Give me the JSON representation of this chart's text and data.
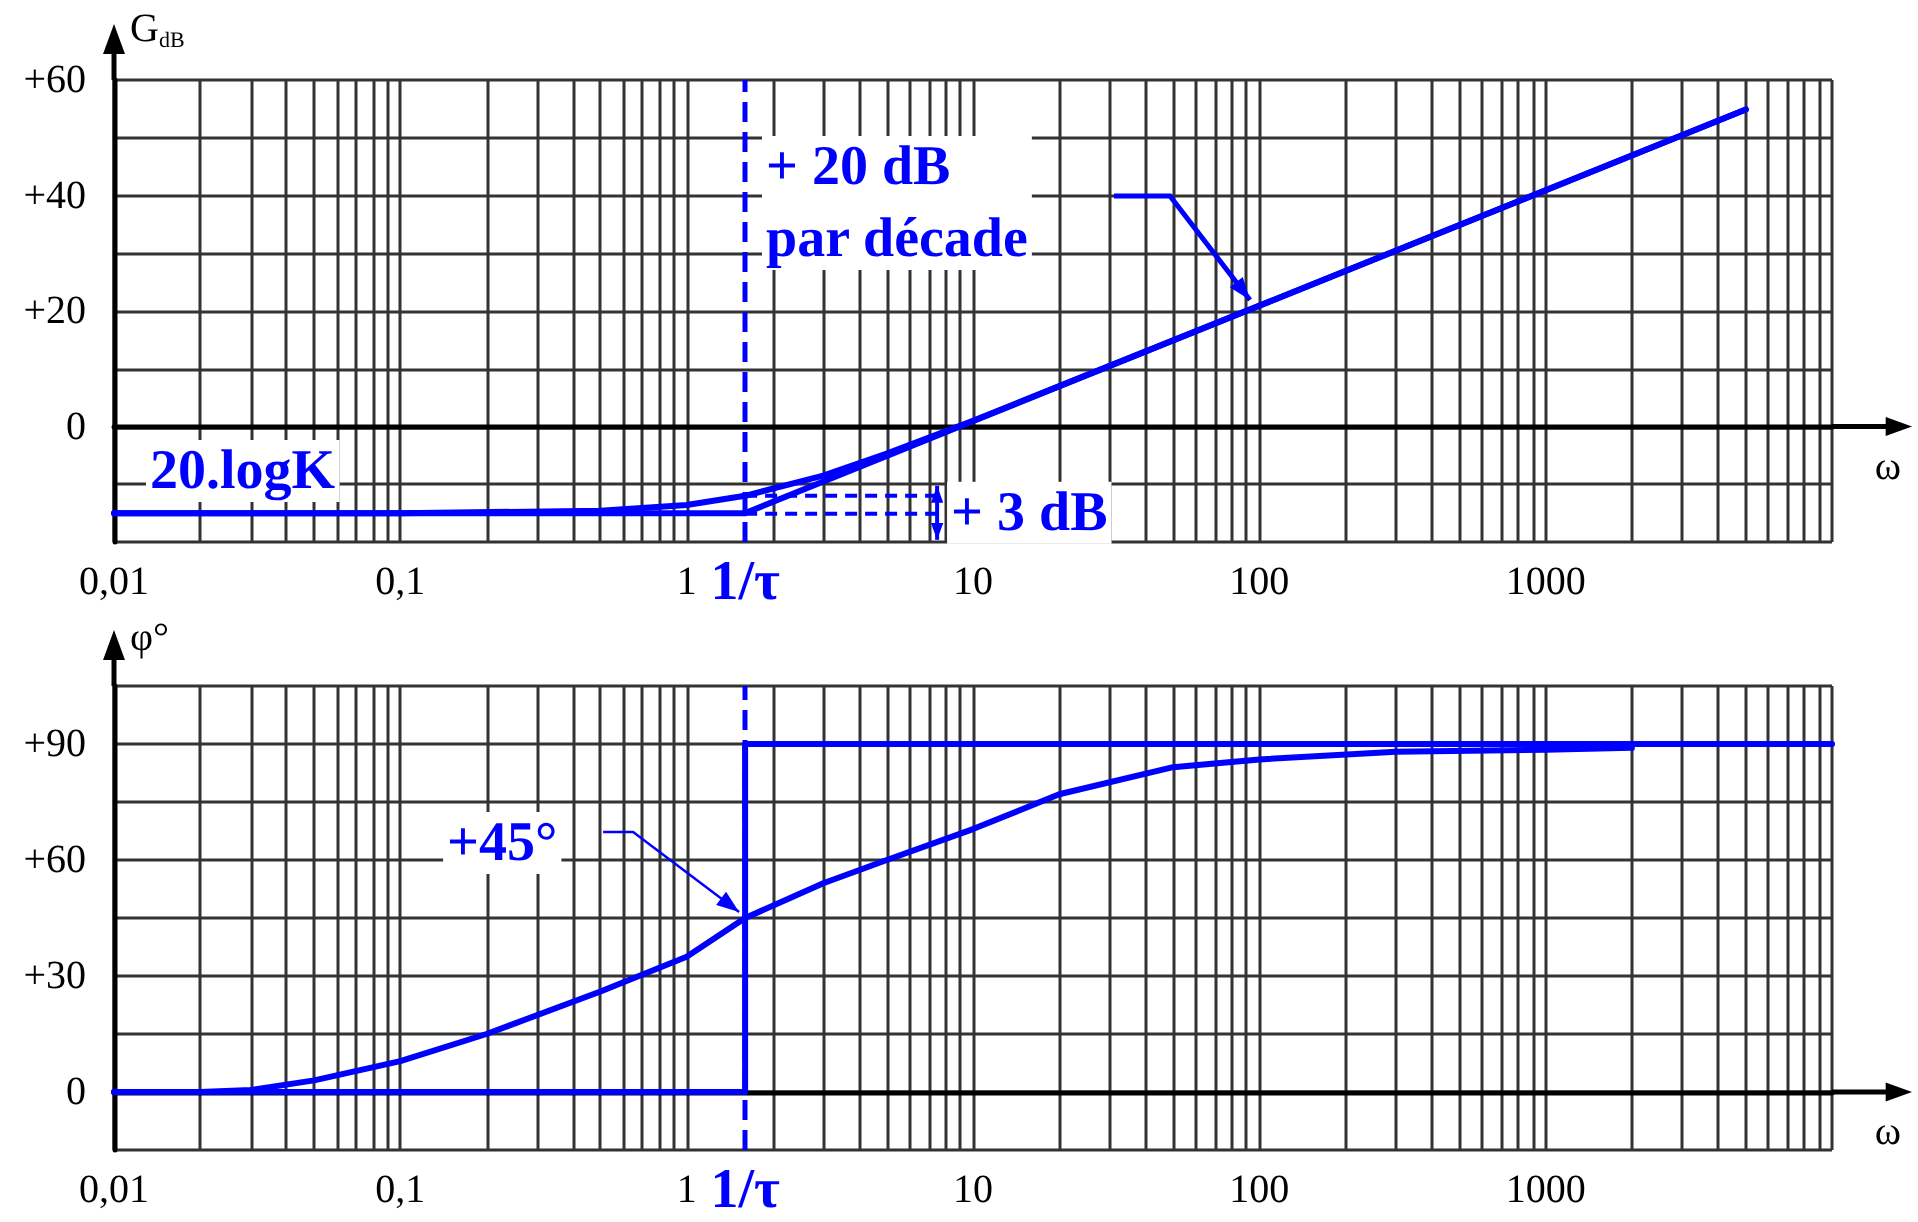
{
  "chart_data": [
    {
      "type": "line",
      "ylabel": "G$_{dB}$",
      "xlabel": "ω",
      "log": "x",
      "grid": true,
      "marker": "none",
      "line_style": "solid",
      "xlim": [
        0.01,
        10000
      ],
      "ylim": [
        -20,
        60
      ],
      "xticks": [
        {
          "value": 0.01,
          "label": "0,01"
        },
        {
          "value": 0.02,
          "label": null
        },
        {
          "value": 0.03,
          "label": null
        },
        {
          "value": 0.04,
          "label": null
        },
        {
          "value": 0.05,
          "label": null
        },
        {
          "value": 0.06,
          "label": null
        },
        {
          "value": 0.07,
          "label": null
        },
        {
          "value": 0.08,
          "label": null
        },
        {
          "value": 0.09,
          "label": null
        },
        {
          "value": 0.1,
          "label": "0,1"
        },
        {
          "value": 0.2,
          "label": null
        },
        {
          "value": 0.3,
          "label": null
        },
        {
          "value": 0.4,
          "label": null
        },
        {
          "value": 0.5,
          "label": null
        },
        {
          "value": 0.6,
          "label": null
        },
        {
          "value": 0.7,
          "label": null
        },
        {
          "value": 0.8,
          "label": null
        },
        {
          "value": 0.9,
          "label": null
        },
        1,
        {
          "value": 2,
          "label": null
        },
        {
          "value": 3,
          "label": null
        },
        {
          "value": 4,
          "label": null
        },
        {
          "value": 5,
          "label": null
        },
        {
          "value": 6,
          "label": null
        },
        {
          "value": 7,
          "label": null
        },
        {
          "value": 8,
          "label": null
        },
        {
          "value": 9,
          "label": null
        },
        10,
        {
          "value": 20,
          "label": null
        },
        {
          "value": 30,
          "label": null
        },
        {
          "value": 40,
          "label": null
        },
        {
          "value": 50,
          "label": null
        },
        {
          "value": 60,
          "label": null
        },
        {
          "value": 70,
          "label": null
        },
        {
          "value": 80,
          "label": null
        },
        {
          "value": 90,
          "label": null
        },
        100,
        {
          "value": 200,
          "label": null
        },
        {
          "value": 300,
          "label": null
        },
        {
          "value": 400,
          "label": null
        },
        {
          "value": 500,
          "label": null
        },
        {
          "value": 600,
          "label": null
        },
        {
          "value": 700,
          "label": null
        },
        {
          "value": 800,
          "label": null
        },
        {
          "value": 900,
          "label": null
        },
        1000,
        {
          "value": 2000,
          "label": null
        },
        {
          "value": 3000,
          "label": null
        },
        {
          "value": 4000,
          "label": null
        },
        {
          "value": 5000,
          "label": null
        },
        {
          "value": 6000,
          "label": null
        },
        {
          "value": 7000,
          "label": null
        },
        {
          "value": 8000,
          "label": null
        },
        {
          "value": 9000,
          "label": null
        },
        {
          "value": 10000,
          "label": null
        }
      ],
      "yticks": [
        {
          "value": -20,
          "label": null
        },
        {
          "value": -10,
          "label": null
        },
        0,
        {
          "value": 10,
          "label": null
        },
        {
          "value": 20,
          "label": "+20"
        },
        {
          "value": 30,
          "label": null
        },
        {
          "value": 40,
          "label": "+40"
        },
        {
          "value": 50,
          "label": null
        },
        {
          "value": 60,
          "label": "+60"
        }
      ],
      "series": [
        {
          "color": "#0000ff",
          "x": [
            0.01,
            0.1,
            0.5,
            1,
            1.6,
            3,
            5,
            10,
            30,
            100,
            1000,
            5000
          ],
          "values": [
            -15,
            -15,
            -14.6,
            -13.6,
            -12,
            -8.5,
            -4.7,
            1,
            10.5,
            20.9,
            40.9,
            54.9
          ]
        },
        {
          "color": "#0000ff",
          "x": [
            0.01,
            1.6,
            5000
          ],
          "values": [
            -15,
            -15,
            54.9
          ]
        }
      ],
      "ref_lines": [
        {
          "axis": "x",
          "value": 1.6,
          "label": "1/τ",
          "color": "#0000ff",
          "line_style": "dashed"
        }
      ],
      "annotations": [
        "20.logK",
        "+ 20 dB\npar décade",
        {
          "text": "+ 3 dB",
          "x": 1.6,
          "y": -12
        }
      ]
    },
    {
      "type": "line",
      "ylabel": "φ°",
      "xlabel": "ω",
      "log": "x",
      "grid": true,
      "marker": "none",
      "line_style": "solid",
      "xlim": [
        0.01,
        10000
      ],
      "ylim": [
        -15,
        105
      ],
      "xticks": [
        {
          "value": 0.01,
          "label": "0,01"
        },
        {
          "value": 0.02,
          "label": null
        },
        {
          "value": 0.03,
          "label": null
        },
        {
          "value": 0.04,
          "label": null
        },
        {
          "value": 0.05,
          "label": null
        },
        {
          "value": 0.06,
          "label": null
        },
        {
          "value": 0.07,
          "label": null
        },
        {
          "value": 0.08,
          "label": null
        },
        {
          "value": 0.09,
          "label": null
        },
        {
          "value": 0.1,
          "label": "0,1"
        },
        {
          "value": 0.2,
          "label": null
        },
        {
          "value": 0.3,
          "label": null
        },
        {
          "value": 0.4,
          "label": null
        },
        {
          "value": 0.5,
          "label": null
        },
        {
          "value": 0.6,
          "label": null
        },
        {
          "value": 0.7,
          "label": null
        },
        {
          "value": 0.8,
          "label": null
        },
        {
          "value": 0.9,
          "label": null
        },
        1,
        {
          "value": 2,
          "label": null
        },
        {
          "value": 3,
          "label": null
        },
        {
          "value": 4,
          "label": null
        },
        {
          "value": 5,
          "label": null
        },
        {
          "value": 6,
          "label": null
        },
        {
          "value": 7,
          "label": null
        },
        {
          "value": 8,
          "label": null
        },
        {
          "value": 9,
          "label": null
        },
        10,
        {
          "value": 20,
          "label": null
        },
        {
          "value": 30,
          "label": null
        },
        {
          "value": 40,
          "label": null
        },
        {
          "value": 50,
          "label": null
        },
        {
          "value": 60,
          "label": null
        },
        {
          "value": 70,
          "label": null
        },
        {
          "value": 80,
          "label": null
        },
        {
          "value": 90,
          "label": null
        },
        100,
        {
          "value": 200,
          "label": null
        },
        {
          "value": 300,
          "label": null
        },
        {
          "value": 400,
          "label": null
        },
        {
          "value": 500,
          "label": null
        },
        {
          "value": 600,
          "label": null
        },
        {
          "value": 700,
          "label": null
        },
        {
          "value": 800,
          "label": null
        },
        {
          "value": 900,
          "label": null
        },
        1000,
        {
          "value": 2000,
          "label": null
        },
        {
          "value": 3000,
          "label": null
        },
        {
          "value": 4000,
          "label": null
        },
        {
          "value": 5000,
          "label": null
        },
        {
          "value": 6000,
          "label": null
        },
        {
          "value": 7000,
          "label": null
        },
        {
          "value": 8000,
          "label": null
        },
        {
          "value": 9000,
          "label": null
        },
        {
          "value": 10000,
          "label": null
        }
      ],
      "yticks": [
        {
          "value": -15,
          "label": null
        },
        0,
        {
          "value": 15,
          "label": null
        },
        {
          "value": 30,
          "label": "+30"
        },
        {
          "value": 45,
          "label": null
        },
        {
          "value": 60,
          "label": "+60"
        },
        {
          "value": 75,
          "label": null
        },
        {
          "value": 90,
          "label": "+90"
        },
        {
          "value": 105,
          "label": null
        }
      ],
      "series": [
        {
          "color": "#0000ff",
          "x": [
            0.01,
            0.02,
            0.03,
            0.05,
            0.1,
            0.2,
            0.5,
            1,
            1.6,
            3,
            5,
            10,
            20,
            50,
            100,
            300,
            1000,
            2000
          ],
          "values": [
            0,
            0,
            0.5,
            3,
            8,
            15,
            26,
            35,
            45,
            54,
            60,
            68,
            77,
            84,
            86,
            88,
            88.5,
            89
          ]
        },
        {
          "color": "#0000ff",
          "x": [
            0.01,
            1.6,
            1.6,
            10000
          ],
          "values": [
            0,
            0,
            90,
            90
          ]
        }
      ],
      "ref_lines": [
        {
          "axis": "x",
          "value": 1.6,
          "label": "1/τ",
          "color": "#0000ff",
          "line_style": "dashed"
        }
      ],
      "annotations": [
        {
          "text": "+45°",
          "x": 1.6,
          "y": 45
        }
      ]
    }
  ]
}
